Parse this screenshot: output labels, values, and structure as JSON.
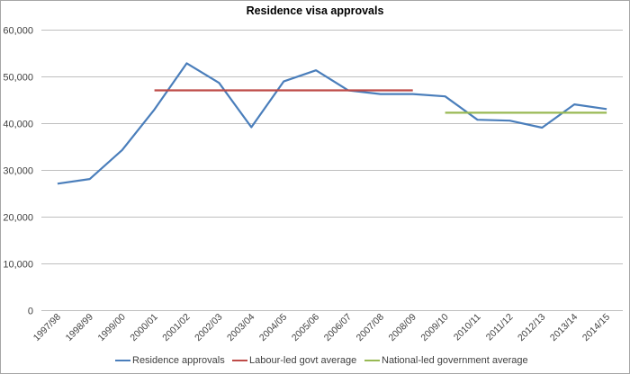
{
  "chart_data": {
    "type": "line",
    "title": "Residence visa approvals",
    "xlabel": "",
    "ylabel": "",
    "ylim": [
      0,
      60000
    ],
    "yticks": [
      0,
      10000,
      20000,
      30000,
      40000,
      50000,
      60000
    ],
    "ytick_labels": [
      "0",
      "10,000",
      "20,000",
      "30,000",
      "40,000",
      "50,000",
      "60,000"
    ],
    "grid": true,
    "legend_position": "bottom",
    "categories": [
      "1997/98",
      "1998/99",
      "1999/00",
      "2000/01",
      "2001/02",
      "2002/03",
      "2003/04",
      "2004/05",
      "2005/06",
      "2006/07",
      "2007/08",
      "2008/09",
      "2009/10",
      "2010/11",
      "2011/12",
      "2012/13",
      "2013/14",
      "2014/15"
    ],
    "series": [
      {
        "name": "Residence approvals",
        "color": "#4a7ebb",
        "values": [
          27000,
          28000,
          34200,
          42900,
          52800,
          48600,
          39100,
          48900,
          51300,
          47000,
          46200,
          46200,
          45700,
          40700,
          40500,
          39000,
          44000,
          43000
        ]
      },
      {
        "name": "Labour-led govt average",
        "color": "#be4b48",
        "values": [
          null,
          null,
          null,
          47000,
          47000,
          47000,
          47000,
          47000,
          47000,
          47000,
          47000,
          47000,
          null,
          null,
          null,
          null,
          null,
          null
        ]
      },
      {
        "name": "National-led government average",
        "color": "#98b954",
        "values": [
          null,
          null,
          null,
          null,
          null,
          null,
          null,
          null,
          null,
          null,
          null,
          null,
          42200,
          42200,
          42200,
          42200,
          42200,
          42200
        ]
      }
    ]
  },
  "legend": {
    "items": [
      {
        "label": "Residence approvals",
        "color": "#4a7ebb"
      },
      {
        "label": "Labour-led govt average",
        "color": "#be4b48"
      },
      {
        "label": "National-led government average",
        "color": "#98b954"
      }
    ]
  }
}
